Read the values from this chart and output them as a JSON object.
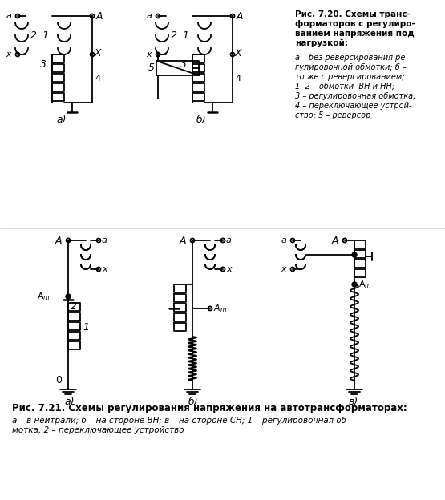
{
  "bg_color": "#ffffff",
  "line_color": "#000000",
  "fig_title": "Рис. 7.20. Схемы транс-\nформаторов с регулиро-\nванием напряжения под\nнагрузкой:",
  "legend_lines": [
    "а – без реверсирования ре-",
    "гулировочной обмотки; б –",
    "то же с реверсированием;",
    "1. 2 – обмотки  ВН и НН;",
    "3 – регулировочная обмотка;",
    "4 – переключающее устрой-",
    "ство; 5 – реверсор"
  ],
  "fig2_title": "Рис. 7.21. Схемы регулирования напряжения на автотрансформаторах:",
  "fig2_leg1": "а – в нейтрали; б – на стороне ВН; в – на стороне СН; 1 – регулировочная об-",
  "fig2_leg2": "мотка; 2 – переключающее устройство"
}
